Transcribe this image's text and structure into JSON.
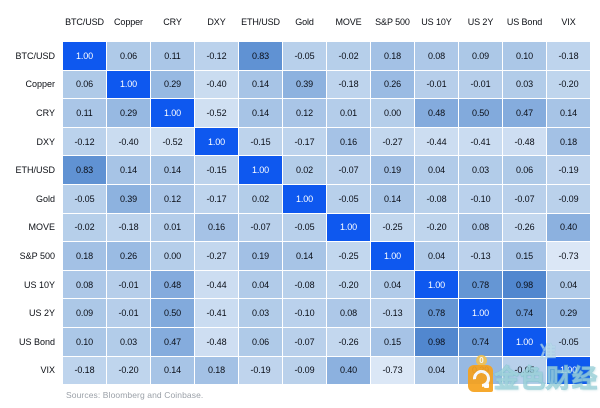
{
  "chart_data": {
    "type": "heatmap",
    "title": "",
    "categories": [
      "BTC/USD",
      "Copper",
      "CRY",
      "DXY",
      "ETH/USD",
      "Gold",
      "MOVE",
      "S&P 500",
      "US 10Y",
      "US 2Y",
      "US Bond",
      "VIX"
    ],
    "matrix": [
      [
        1.0,
        0.06,
        0.11,
        -0.12,
        0.83,
        -0.05,
        -0.02,
        0.18,
        0.08,
        0.09,
        0.1,
        -0.18
      ],
      [
        0.06,
        1.0,
        0.29,
        -0.4,
        0.14,
        0.39,
        -0.18,
        0.26,
        -0.01,
        -0.01,
        0.03,
        -0.2
      ],
      [
        0.11,
        0.29,
        1.0,
        -0.52,
        0.14,
        0.12,
        0.01,
        0.0,
        0.48,
        0.5,
        0.47,
        0.14
      ],
      [
        -0.12,
        -0.4,
        -0.52,
        1.0,
        -0.15,
        -0.17,
        0.16,
        -0.27,
        -0.44,
        -0.41,
        -0.48,
        0.18
      ],
      [
        0.83,
        0.14,
        0.14,
        -0.15,
        1.0,
        0.02,
        -0.07,
        0.19,
        0.04,
        0.03,
        0.06,
        -0.19
      ],
      [
        -0.05,
        0.39,
        0.12,
        -0.17,
        0.02,
        1.0,
        -0.05,
        0.14,
        -0.08,
        -0.1,
        -0.07,
        -0.09
      ],
      [
        -0.02,
        -0.18,
        0.01,
        0.16,
        -0.07,
        -0.05,
        1.0,
        -0.25,
        -0.2,
        0.08,
        -0.26,
        0.4
      ],
      [
        0.18,
        0.26,
        0.0,
        -0.27,
        0.19,
        0.14,
        -0.25,
        1.0,
        0.04,
        -0.13,
        0.15,
        -0.73
      ],
      [
        0.08,
        -0.01,
        0.48,
        -0.44,
        0.04,
        -0.08,
        -0.2,
        0.04,
        1.0,
        0.78,
        0.98,
        0.04
      ],
      [
        0.09,
        -0.01,
        0.5,
        -0.41,
        0.03,
        -0.1,
        0.08,
        -0.13,
        0.78,
        1.0,
        0.74,
        0.29
      ],
      [
        0.1,
        0.03,
        0.47,
        -0.48,
        0.06,
        -0.07,
        -0.26,
        0.15,
        0.98,
        0.74,
        1.0,
        -0.05
      ],
      [
        -0.18,
        -0.2,
        0.14,
        0.18,
        -0.19,
        -0.09,
        0.4,
        -0.73,
        0.04,
        0.29,
        -0.05,
        1.0
      ]
    ],
    "value_format": "2 decimals",
    "legend": "none",
    "grid": "1px white gaps between cells",
    "sources": "Sources: Bloomberg and Coinbase.",
    "colors": {
      "diagonal": "#0e58ef",
      "zero": "#b5ceea",
      "positive_end": "#4f86ce",
      "negative_end": "#e9f0fa",
      "cell_text": "#0a0e17",
      "diagonal_text": "#ffffff",
      "header_text": "#0b0e14",
      "sources_text": "#9ba1a8"
    }
  },
  "watermark": {
    "text": "金色财经",
    "coin_text": "0",
    "extra_char": "准",
    "logo_color": "#f6a21d"
  }
}
